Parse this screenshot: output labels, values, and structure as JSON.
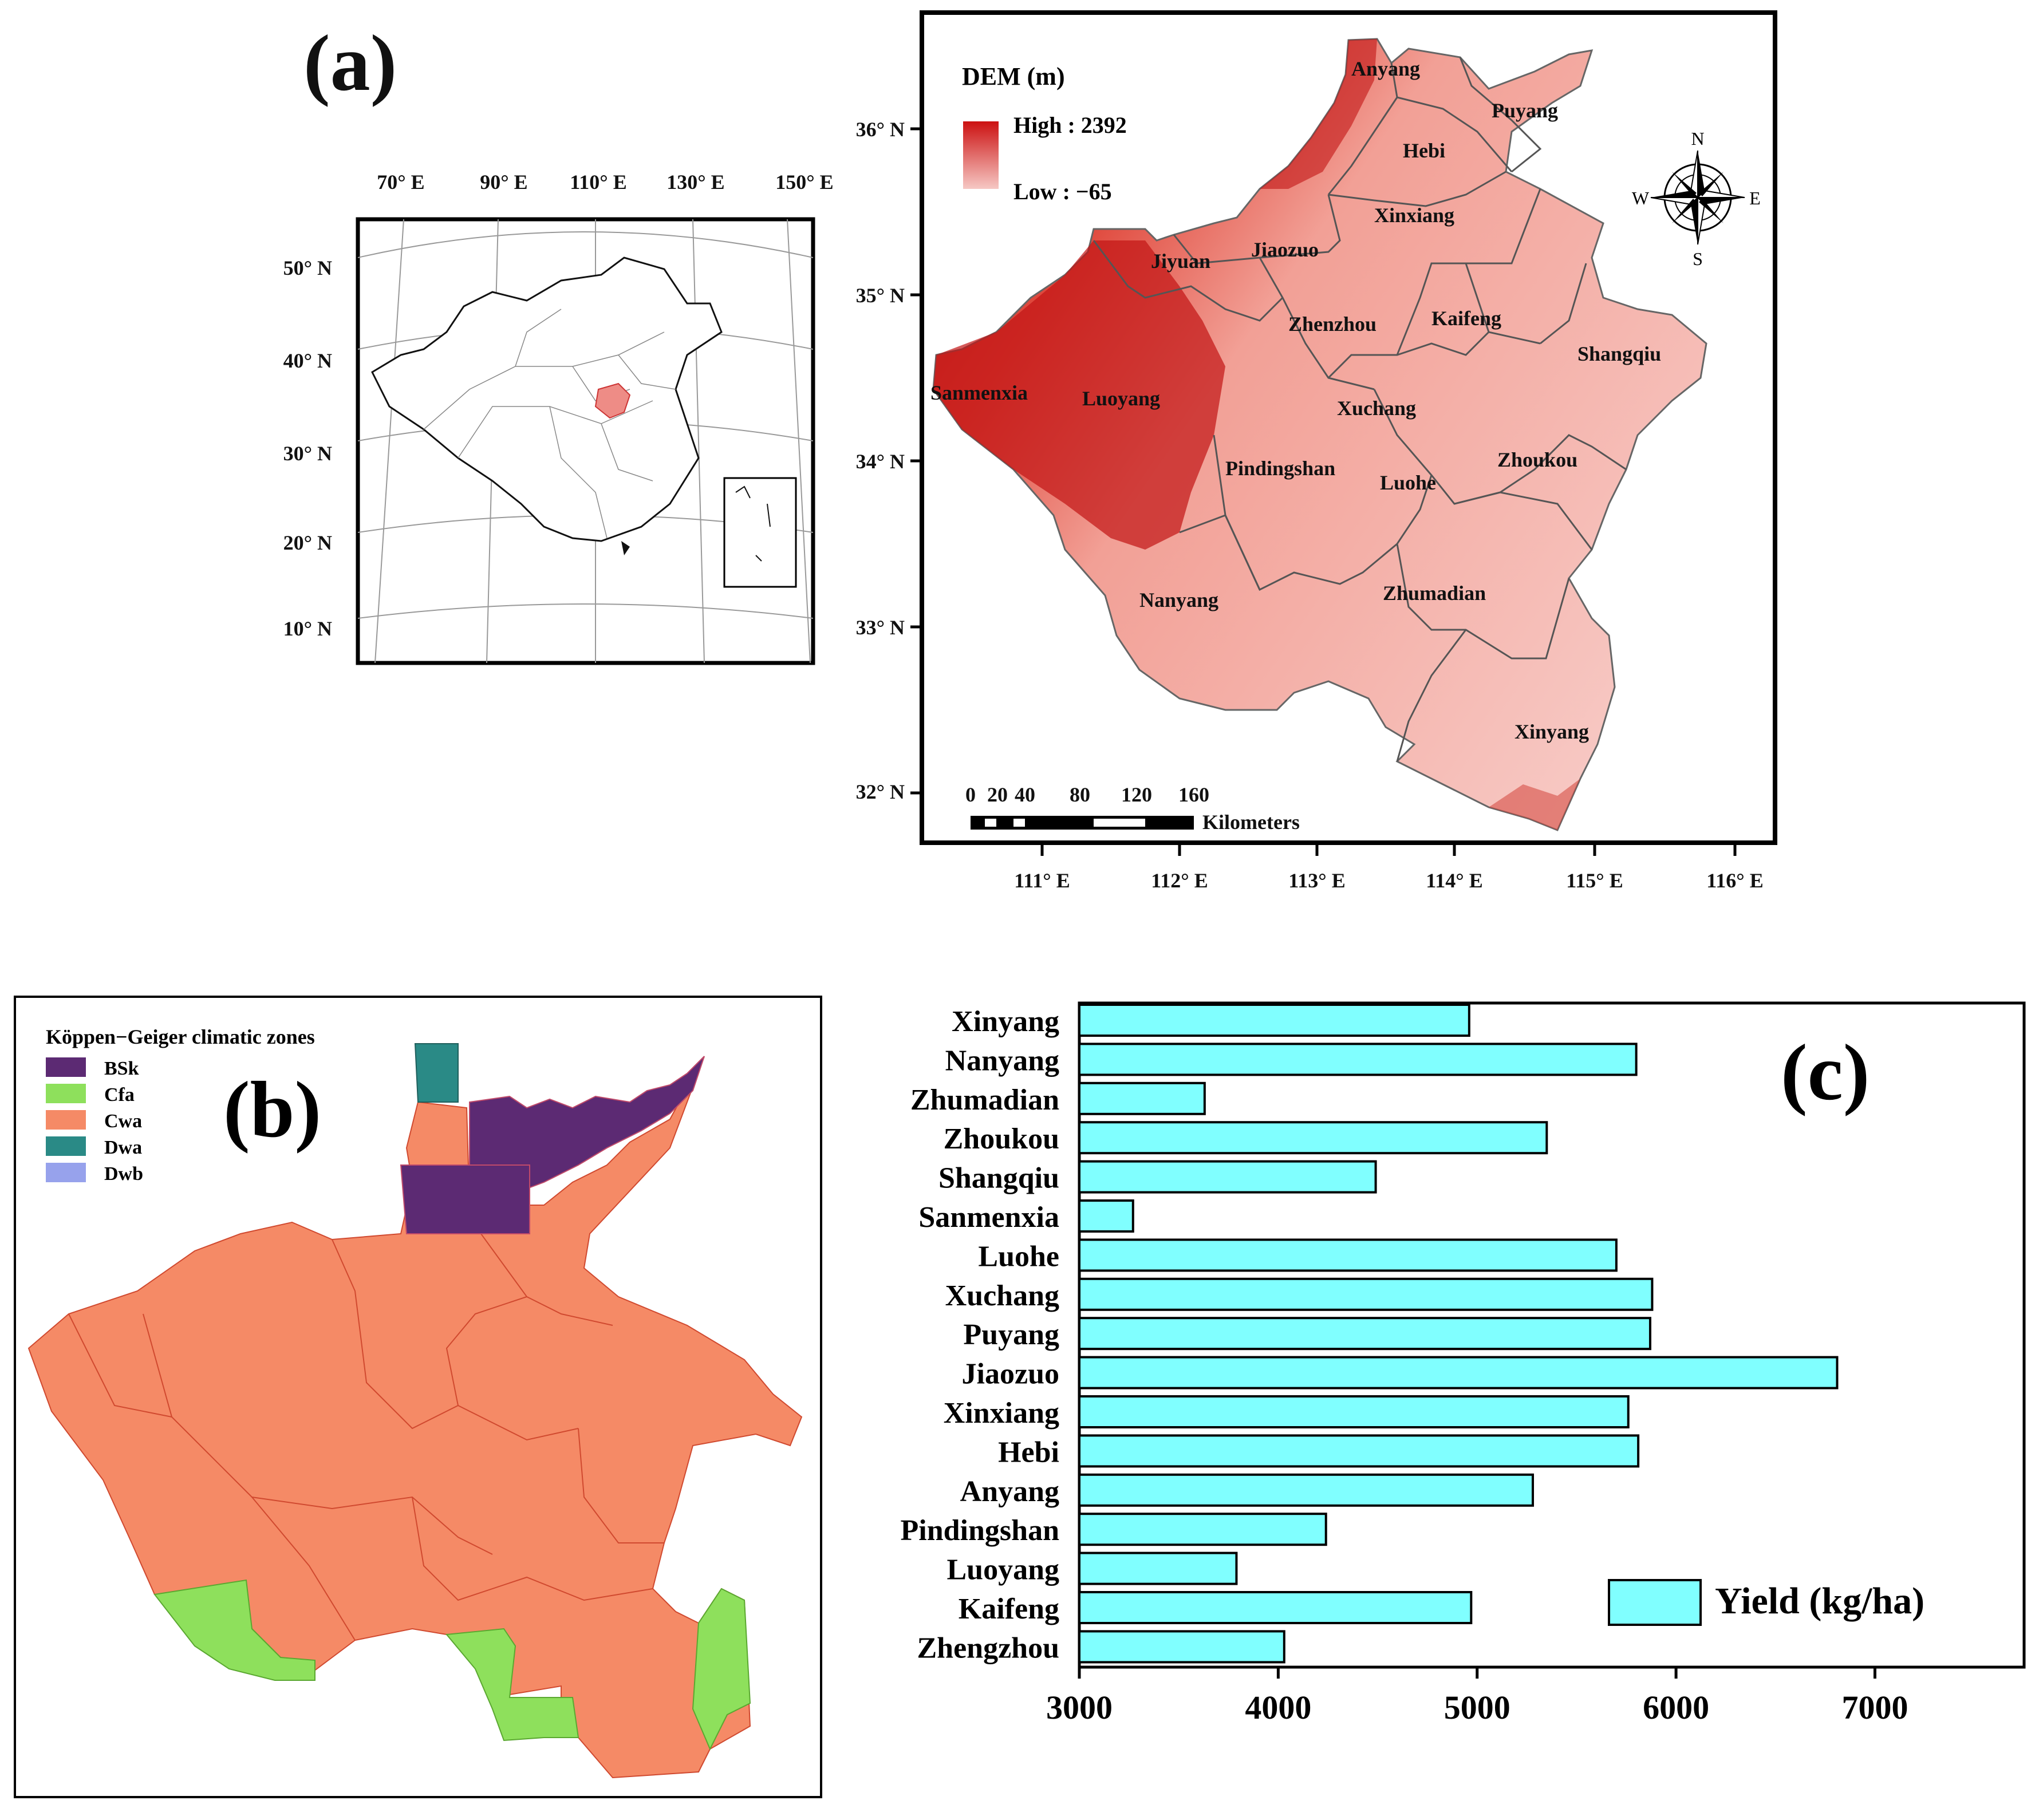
{
  "panel_a": {
    "label": "(a)",
    "inset": {
      "lon_labels": [
        "70° E",
        "90° E",
        "110° E",
        "130° E",
        "150° E"
      ],
      "lat_labels": [
        "50° N",
        "40° N",
        "30° N",
        "20° N",
        "10° N"
      ]
    },
    "dem": {
      "legend_title": "DEM (m)",
      "high_label": "High : 2392",
      "low_label": "Low : −65",
      "high_color": "#cc1111",
      "low_color": "#f6c8c4",
      "lat_labels": [
        "36° N",
        "35° N",
        "34° N",
        "33° N",
        "32° N"
      ],
      "lon_labels": [
        "111° E",
        "112° E",
        "113° E",
        "114° E",
        "115° E",
        "116° E"
      ],
      "scale_numbers": [
        "0",
        "20",
        "40",
        "80",
        "120",
        "160"
      ],
      "scale_unit": "Kilometers",
      "compass": {
        "n": "N",
        "s": "S",
        "e": "E",
        "w": "W"
      },
      "cities": [
        "Anyang",
        "Puyang",
        "Hebi",
        "Xinxiang",
        "Jiyuan",
        "Jiaozuo",
        "Zhenzhou",
        "Kaifeng",
        "Shangqiu",
        "Sanmenxia",
        "Luoyang",
        "Xuchang",
        "Pindingshan",
        "Luohe",
        "Zhoukou",
        "Nanyang",
        "Zhumadian",
        "Xinyang"
      ]
    }
  },
  "panel_b": {
    "label": "(b)",
    "legend_title": "Köppen−Geiger climatic zones",
    "zones": [
      {
        "name": "BSk",
        "color": "#5c2a73"
      },
      {
        "name": "Cfa",
        "color": "#8ee05c"
      },
      {
        "name": "Cwa",
        "color": "#f58a66"
      },
      {
        "name": "Dwa",
        "color": "#2a8a86"
      },
      {
        "name": "Dwb",
        "color": "#97a2ec"
      }
    ]
  },
  "panel_c": {
    "label": "(c)",
    "chart_data": {
      "type": "bar",
      "orientation": "horizontal",
      "categories": [
        "Xinyang",
        "Nanyang",
        "Zhumadian",
        "Zhoukou",
        "Shangqiu",
        "Sanmenxia",
        "Luohe",
        "Xuchang",
        "Puyang",
        "Jiaozuo",
        "Xinxiang",
        "Hebi",
        "Anyang",
        "Pindingshan",
        "Luoyang",
        "Kaifeng",
        "Zhengzhou"
      ],
      "values": [
        4960,
        5800,
        3630,
        5350,
        4490,
        3270,
        5700,
        5880,
        5870,
        6810,
        5760,
        5810,
        5280,
        4240,
        3790,
        4970,
        4030
      ],
      "xlim": [
        3000,
        7750
      ],
      "xticks": [
        "3000",
        "4000",
        "5000",
        "6000",
        "7000"
      ],
      "legend": "Yield (kg/ha)",
      "bar_color": "#80ffff"
    }
  }
}
